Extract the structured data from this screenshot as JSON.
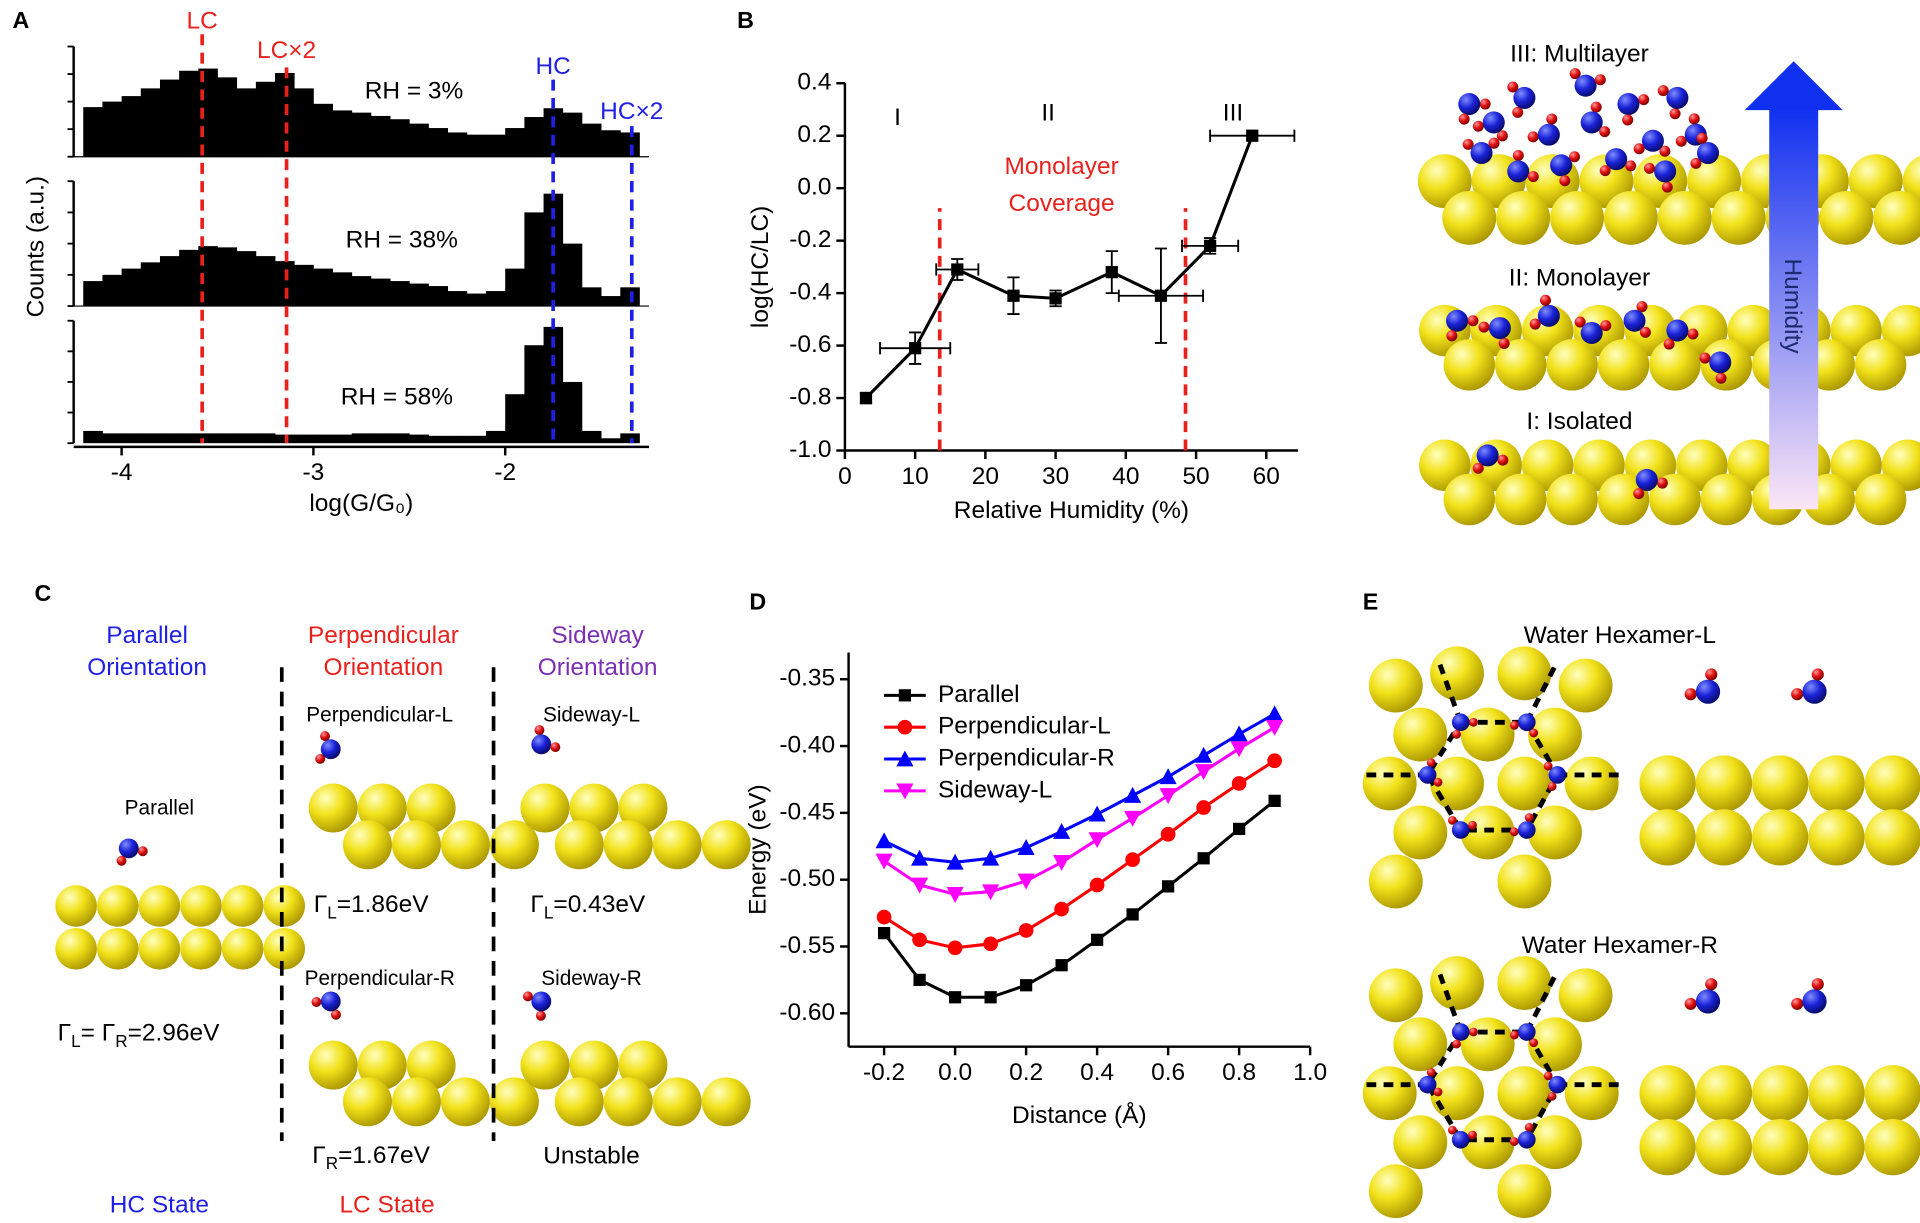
{
  "chart_data": [
    {
      "type": "histogram",
      "ylabel": "Counts (a.u.)",
      "xlabel": "log(G/G₀)",
      "color": "#000000",
      "xlim": [
        -4.25,
        -1.25
      ],
      "xticks": [
        -4,
        -3,
        -2
      ],
      "ylim": [
        0,
        100
      ],
      "bins": [
        -4.2,
        -4.1,
        -4.0,
        -3.9,
        -3.8,
        -3.7,
        -3.6,
        -3.5,
        -3.4,
        -3.3,
        -3.2,
        -3.1,
        -3.0,
        -2.9,
        -2.8,
        -2.7,
        -2.6,
        -2.5,
        -2.4,
        -2.3,
        -2.2,
        -2.1,
        -2.0,
        -1.9,
        -1.8,
        -1.7,
        -1.6,
        -1.5,
        -1.4,
        -1.3
      ],
      "series": [
        {
          "name": "RH = 3%",
          "values": [
            45,
            50,
            55,
            62,
            70,
            78,
            80,
            72,
            62,
            68,
            76,
            62,
            48,
            42,
            40,
            37,
            34,
            30,
            26,
            22,
            20,
            20,
            26,
            36,
            44,
            40,
            30,
            24,
            22
          ]
        },
        {
          "name": "RH = 38%",
          "values": [
            20,
            25,
            30,
            35,
            40,
            45,
            48,
            47,
            44,
            40,
            36,
            33,
            30,
            27,
            24,
            22,
            20,
            18,
            16,
            12,
            10,
            12,
            30,
            75,
            90,
            50,
            15,
            8,
            15
          ]
        },
        {
          "name": "RH = 58%",
          "values": [
            10,
            8,
            8,
            8,
            8,
            8,
            8,
            8,
            8,
            8,
            7,
            7,
            7,
            7,
            8,
            8,
            8,
            7,
            6,
            6,
            6,
            10,
            40,
            80,
            95,
            50,
            10,
            4,
            8
          ]
        }
      ],
      "markers": [
        {
          "label": "LC",
          "x": -3.58,
          "color": "#e8211d"
        },
        {
          "label": "LC×2",
          "x": -3.14,
          "color": "#e8211d"
        },
        {
          "label": "HC",
          "x": -1.75,
          "color": "#1f1fe6"
        },
        {
          "label": "HC×2",
          "x": -1.34,
          "color": "#1f1fe6"
        }
      ]
    },
    {
      "type": "line",
      "xlabel": "Relative Humidity (%)",
      "ylabel": "log(HC/LC)",
      "color": "#000000",
      "xlim": [
        0,
        64.5
      ],
      "xticks": [
        0,
        10,
        20,
        30,
        40,
        50,
        60
      ],
      "ylim": [
        -1.0,
        0.4
      ],
      "yticks": [
        {
          "value": -1.0,
          "label": "-1.0"
        },
        -0.8,
        -0.6,
        -0.4,
        -0.2,
        {
          "value": 0,
          "label": "0.0"
        },
        0.2,
        0.4
      ],
      "x": [
        3,
        10,
        16,
        24,
        30,
        38,
        45,
        52,
        58
      ],
      "values": [
        -0.8,
        -0.61,
        -0.31,
        -0.41,
        -0.42,
        -0.32,
        -0.41,
        -0.22,
        0.2
      ],
      "yerr": [
        0.02,
        0.06,
        0.04,
        0.07,
        0.03,
        0.08,
        0.18,
        0.03,
        0
      ],
      "xerr": [
        0,
        5,
        3,
        0,
        0,
        0,
        6,
        4,
        6
      ],
      "region_labels": [
        "I",
        "II",
        "III"
      ],
      "annotation": [
        "Monolayer",
        "Coverage"
      ],
      "boundaries": [
        13.5,
        48.5
      ],
      "boundary_color": "#e8211d"
    },
    {
      "type": "line",
      "xlabel": "Distance (Å)",
      "ylabel": "Energy (eV)",
      "legend": "upper left",
      "xlim": [
        -0.3,
        1.0
      ],
      "xticks": [
        -0.2,
        {
          "value": 0,
          "label": "0.0"
        },
        0.2,
        0.4,
        0.6,
        0.8,
        {
          "value": 1.0,
          "label": "1.0"
        }
      ],
      "ylim": [
        -0.625,
        -0.33
      ],
      "yticks": [
        -0.35,
        {
          "value": -0.4,
          "label": "-0.40"
        },
        -0.45,
        {
          "value": -0.5,
          "label": "-0.50"
        },
        -0.55,
        {
          "value": -0.6,
          "label": "-0.60"
        }
      ],
      "x": [
        -0.2,
        -0.1,
        0,
        0.1,
        0.2,
        0.3,
        0.4,
        0.5,
        0.6,
        0.7,
        0.8,
        0.9
      ],
      "series": [
        {
          "name": "Parallel",
          "color": "#000000",
          "marker": "square",
          "values": [
            -0.54,
            -0.575,
            -0.588,
            -0.588,
            -0.579,
            -0.564,
            -0.545,
            -0.526,
            -0.505,
            -0.484,
            -0.462,
            -0.441
          ]
        },
        {
          "name": "Perpendicular-L",
          "color": "#ff0000",
          "marker": "circle",
          "values": [
            -0.528,
            -0.545,
            -0.551,
            -0.548,
            -0.538,
            -0.522,
            -0.504,
            -0.485,
            -0.466,
            -0.446,
            -0.428,
            -0.411
          ]
        },
        {
          "name": "Perpendicular-R",
          "color": "#0000ff",
          "marker": "triangle-up",
          "values": [
            -0.471,
            -0.484,
            -0.487,
            -0.484,
            -0.476,
            -0.464,
            -0.451,
            -0.437,
            -0.423,
            -0.407,
            -0.391,
            -0.376
          ]
        },
        {
          "name": "Sideway-L",
          "color": "#ff00ff",
          "marker": "triangle-down",
          "values": [
            -0.486,
            -0.504,
            -0.511,
            -0.509,
            -0.501,
            -0.487,
            -0.47,
            -0.454,
            -0.437,
            -0.419,
            -0.402,
            -0.386
          ]
        }
      ]
    }
  ],
  "panel_labels": [
    "A",
    "B",
    "C",
    "D",
    "E"
  ],
  "panel_b_structures": {
    "levels": [
      "III: Multilayer",
      "II: Monolayer",
      "I: Isolated"
    ],
    "arrow_label": "Humidity"
  },
  "panel_c": {
    "headers": [
      [
        "Parallel",
        "Orientation"
      ],
      [
        "Perpendicular",
        "Orientation"
      ],
      [
        "Sideway",
        "Orientation"
      ]
    ],
    "parallel": {
      "name": "Parallel",
      "gamma": [
        "Γ",
        "L",
        "= Γ",
        "R",
        "=2.96eV"
      ],
      "state": "HC State"
    },
    "perpendicular": {
      "left": "Perpendicular-L",
      "gamma_l": [
        "Γ",
        "L",
        "=1.86eV"
      ],
      "right": "Perpendicular-R",
      "gamma_r": [
        "Γ",
        "R",
        "=1.67eV"
      ],
      "state": "LC State"
    },
    "sideway": {
      "left": "Sideway-L",
      "gamma_l": [
        "Γ",
        "L",
        "=0.43eV"
      ],
      "right": "Sideway-R",
      "result": "Unstable"
    }
  },
  "panel_e": {
    "titles": [
      "Water Hexamer-L",
      "Water Hexamer-R"
    ]
  }
}
